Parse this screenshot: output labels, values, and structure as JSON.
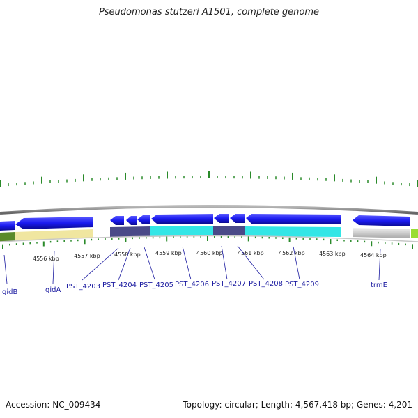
{
  "title": "Pseudomonas stutzeri A1501, complete genome",
  "footer": {
    "accession": "Accession: NC_009434",
    "summary": "Topology: circular; Length: 4,567,418 bp; Genes: 4,201"
  },
  "kbp_labels": [
    "4556 kbp",
    "4557 kbp",
    "4558 kbp",
    "4559 kbp",
    "4560 kbp",
    "4561 kbp",
    "4562 kbp",
    "4563 kbp",
    "4564 kbp"
  ],
  "gene_labels": [
    "gidB",
    "gidA",
    "PST_4203",
    "PST_4204",
    "PST_4205",
    "PST_4206",
    "PST_4207",
    "PST_4208",
    "PST_4209",
    "trmE"
  ],
  "colors": {
    "gene_blue": "#1a1af0",
    "tick_green": "#2a8a2a",
    "backbone_gray": "#888888",
    "cog_yellow": "#f0e6a0",
    "cog_cyan": "#33e6e6",
    "cog_purple": "#4a4a88",
    "cog_green": "#5a8a2a",
    "cog_lime": "#99dd33",
    "label_blue": "#1a1aa0"
  }
}
